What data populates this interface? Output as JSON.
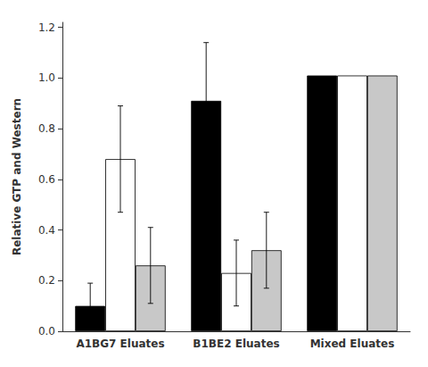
{
  "chart_data": {
    "type": "bar",
    "ylabel": "Relative GTP and Western",
    "categories": [
      "A1BG7 Eluates",
      "B1BE2 Eluates",
      "Mixed Eluates"
    ],
    "series": [
      {
        "color": "#000000",
        "values": [
          0.1,
          0.91,
          1.01
        ],
        "errors": [
          0.09,
          0.23,
          0.0
        ]
      },
      {
        "color": "#ffffff",
        "values": [
          0.68,
          0.23,
          1.01
        ],
        "errors": [
          0.21,
          0.13,
          0.0
        ]
      },
      {
        "color": "#c8c8c8",
        "values": [
          0.26,
          0.32,
          1.01
        ],
        "errors": [
          0.15,
          0.15,
          0.0
        ]
      }
    ],
    "ylim": [
      0.0,
      1.22
    ],
    "yticks": [
      {
        "value": 0,
        "label": "0.0"
      },
      0.2,
      0.4,
      0.6,
      0.8,
      {
        "value": 1,
        "label": "1.0"
      },
      1.2
    ],
    "grid": false
  }
}
